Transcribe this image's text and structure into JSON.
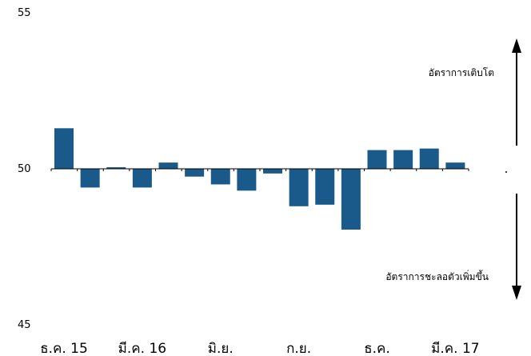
{
  "chart_data": {
    "type": "bar",
    "ylim": [
      45,
      55
    ],
    "baseline": 50,
    "y_ticks": [
      {
        "value": 55,
        "label": "55"
      },
      {
        "value": 50,
        "label": "50"
      },
      {
        "value": 45,
        "label": "45"
      }
    ],
    "x_tick_labels": [
      {
        "index": 0,
        "label": "ธ.ค. 15"
      },
      {
        "index": 3,
        "label": "มี.ค. 16"
      },
      {
        "index": 6,
        "label": "มิ.ย."
      },
      {
        "index": 9,
        "label": "ก.ย."
      },
      {
        "index": 12,
        "label": "ธ.ค."
      },
      {
        "index": 15,
        "label": "มี.ค. 17"
      }
    ],
    "values": [
      51.3,
      49.4,
      50.05,
      49.4,
      50.2,
      49.75,
      49.5,
      49.3,
      49.85,
      48.8,
      48.85,
      48.05,
      50.6,
      50.6,
      50.65,
      50.2
    ],
    "bar_color": "#1a5a8a",
    "annotations": {
      "up_label": "อัตราการเติบโต",
      "down_label": "อัตราการชะลอตัวเพิ่มขึ้น"
    },
    "grid": false,
    "legend": "none"
  }
}
